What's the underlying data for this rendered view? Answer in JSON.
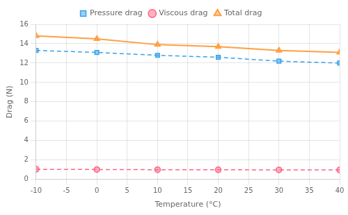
{
  "chart_data": {
    "type": "line",
    "xlabel": "Temperature (°C)",
    "ylabel": "Drag (N)",
    "x": [
      -10,
      0,
      10,
      20,
      30,
      40
    ],
    "series": [
      {
        "name": "Pressure drag",
        "values": [
          13.3,
          13.1,
          12.8,
          12.6,
          12.2,
          12.0
        ],
        "marker": "square",
        "line_style": "dashed"
      },
      {
        "name": "Viscous drag",
        "values": [
          1.05,
          1.03,
          1.01,
          1.0,
          0.99,
          0.98
        ],
        "marker": "circle",
        "line_style": "dashed"
      },
      {
        "name": "Total drag",
        "values": [
          14.8,
          14.5,
          13.9,
          13.7,
          13.3,
          13.1
        ],
        "marker": "triangle",
        "line_style": "solid"
      }
    ],
    "xlim": [
      -10,
      40
    ],
    "ylim": [
      0,
      16
    ],
    "xticks": [
      -10,
      -5,
      0,
      5,
      10,
      15,
      20,
      25,
      30,
      35,
      40
    ],
    "yticks": [
      0,
      2,
      4,
      6,
      8,
      10,
      12,
      14,
      16
    ],
    "grid": true,
    "legend": "top"
  }
}
